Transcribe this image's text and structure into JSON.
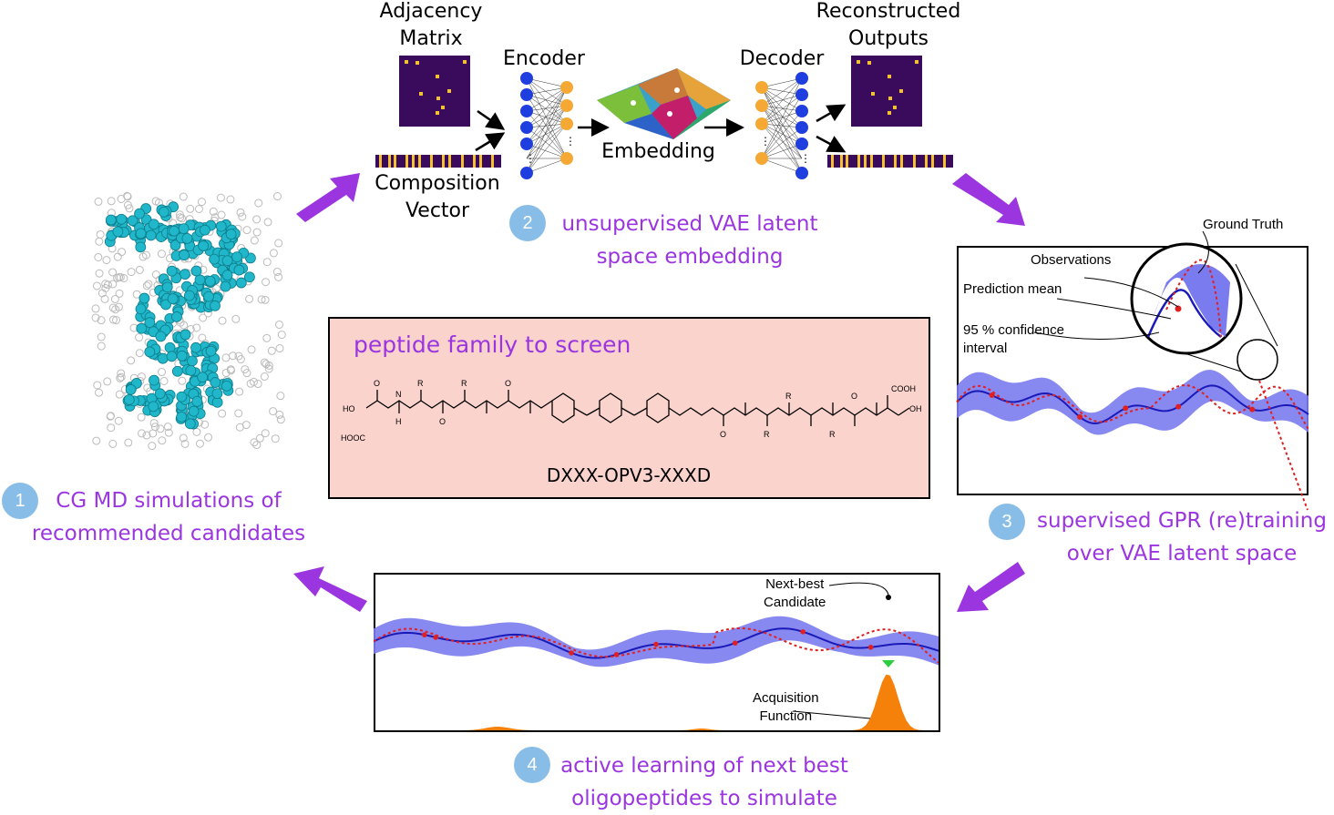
{
  "top_pipeline": {
    "adjacency_label": "Adjacency\nMatrix",
    "composition_label": "Composition\nVector",
    "encoder_label": "Encoder",
    "embedding_label": "Embedding",
    "decoder_label": "Decoder",
    "reconstructed_label": "Reconstructed\nOutputs"
  },
  "steps": [
    {
      "number": "1",
      "text": "CG MD simulations of\nrecommended candidates"
    },
    {
      "number": "2",
      "text": "unsupervised VAE latent\nspace embedding"
    },
    {
      "number": "3",
      "text": "supervised GPR (re)training\nover VAE latent space"
    },
    {
      "number": "4",
      "text": "active learning of next best\noligopeptides to simulate"
    }
  ],
  "peptide_box": {
    "title": "peptide family to screen",
    "name": "DXXX-OPV3-XXXD",
    "chem": {
      "ho": "HO",
      "hooc": "HOOC",
      "cooh": "COOH",
      "oh": "OH",
      "o": "O",
      "r": "R",
      "n": "N",
      "h": "H"
    }
  },
  "gpr_panel": {
    "ground_truth": "Ground Truth",
    "observations": "Observations",
    "prediction_mean": "Prediction mean",
    "confidence": "95 % confidence\ninterval"
  },
  "al_panel": {
    "next_best": "Next-best\nCandidate",
    "acquisition": "Acquisition\nFunction"
  },
  "colors": {
    "purple_text": "#9b35e0",
    "arrow": "#9b35e0",
    "band": "#7b7bf0",
    "mean": "#1a1ab8",
    "truth": "#e02020",
    "acquisition": "#f5800a",
    "peptide_bg": "#fbd3cd",
    "matrix_bg": "#3a0a5c",
    "matrix_cell": "#f2c230",
    "node_blue": "#1f3ee0",
    "node_orange": "#f5a833"
  }
}
